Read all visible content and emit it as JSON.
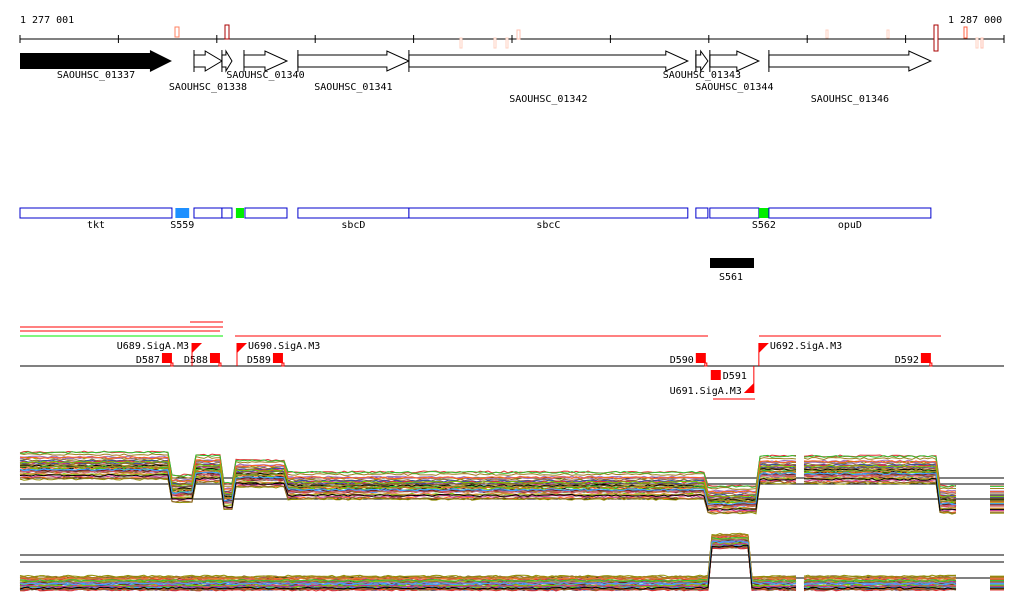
{
  "axis": {
    "start": 1277001,
    "end": 1287000,
    "start_label": "1 277 001",
    "end_label": "1 287 000"
  },
  "genes": [
    {
      "name": "SAOUHSC_01337",
      "start": 1277001,
      "end": 1278545,
      "filled": true
    },
    {
      "name": "SAOUHSC_01338",
      "start": 1278769,
      "end": 1279053,
      "filled": false
    },
    {
      "name": "",
      "start": 1279053,
      "end": 1279155,
      "filled": false
    },
    {
      "name": "SAOUHSC_01340",
      "start": 1279277,
      "end": 1279714,
      "filled": false
    },
    {
      "name": "SAOUHSC_01341",
      "start": 1279825,
      "end": 1280953,
      "filled": false
    },
    {
      "name": "SAOUHSC_01342",
      "start": 1280953,
      "end": 1283787,
      "filled": false
    },
    {
      "name": "SAOUHSC_01343",
      "start": 1283869,
      "end": 1283991,
      "filled": false
    },
    {
      "name": "SAOUHSC_01344",
      "start": 1284011,
      "end": 1284509,
      "filled": false
    },
    {
      "name": "SAOUHSC_01346",
      "start": 1284611,
      "end": 1286257,
      "filled": false
    }
  ],
  "operon_segments": [
    {
      "label": "tkt",
      "start": 1277001,
      "end": 1278545,
      "type": "gene"
    },
    {
      "label": "S559",
      "start": 1278580,
      "end": 1278720,
      "type": "blue"
    },
    {
      "label": "",
      "start": 1278769,
      "end": 1279053,
      "type": "gene"
    },
    {
      "label": "",
      "start": 1279053,
      "end": 1279155,
      "type": "gene"
    },
    {
      "label": "",
      "start": 1279195,
      "end": 1279277,
      "type": "green"
    },
    {
      "label": "",
      "start": 1279287,
      "end": 1279714,
      "type": "gene"
    },
    {
      "label": "sbcD",
      "start": 1279825,
      "end": 1280953,
      "type": "gene"
    },
    {
      "label": "sbcC",
      "start": 1280953,
      "end": 1283787,
      "type": "gene"
    },
    {
      "label": "",
      "start": 1283869,
      "end": 1283991,
      "type": "gene"
    },
    {
      "label": "",
      "start": 1284011,
      "end": 1284509,
      "type": "gene"
    },
    {
      "label": "S562",
      "start": 1284509,
      "end": 1284611,
      "type": "green"
    },
    {
      "label": "opuD",
      "start": 1284611,
      "end": 1286257,
      "type": "gene"
    }
  ],
  "extra_feature": {
    "label": "S561",
    "start": 1284011,
    "end": 1284458
  },
  "transcripts": [
    {
      "label": "D587",
      "pos": 1278545,
      "strand": "down"
    },
    {
      "label": "D588",
      "pos": 1279033,
      "strand": "down"
    },
    {
      "label": "D589",
      "pos": 1279673,
      "strand": "down"
    },
    {
      "label": "D590",
      "pos": 1283970,
      "strand": "down"
    },
    {
      "label": "D591",
      "pos": 1284051,
      "strand": "below"
    },
    {
      "label": "D592",
      "pos": 1286257,
      "strand": "down"
    },
    {
      "label": "U689.SigA.M3",
      "pos": 1278749,
      "strand": "up"
    },
    {
      "label": "U690.SigA.M3",
      "pos": 1279206,
      "strand": "up"
    },
    {
      "label": "U692.SigA.M3",
      "pos": 1284509,
      "strand": "up"
    },
    {
      "label": "U691.SigA.M3",
      "pos": 1284458,
      "strand": "reverse"
    }
  ],
  "colors": {
    "red": "#ff0000",
    "green": "#00ee00",
    "blue": "#0000cc",
    "cyan": "#1e90ff"
  }
}
